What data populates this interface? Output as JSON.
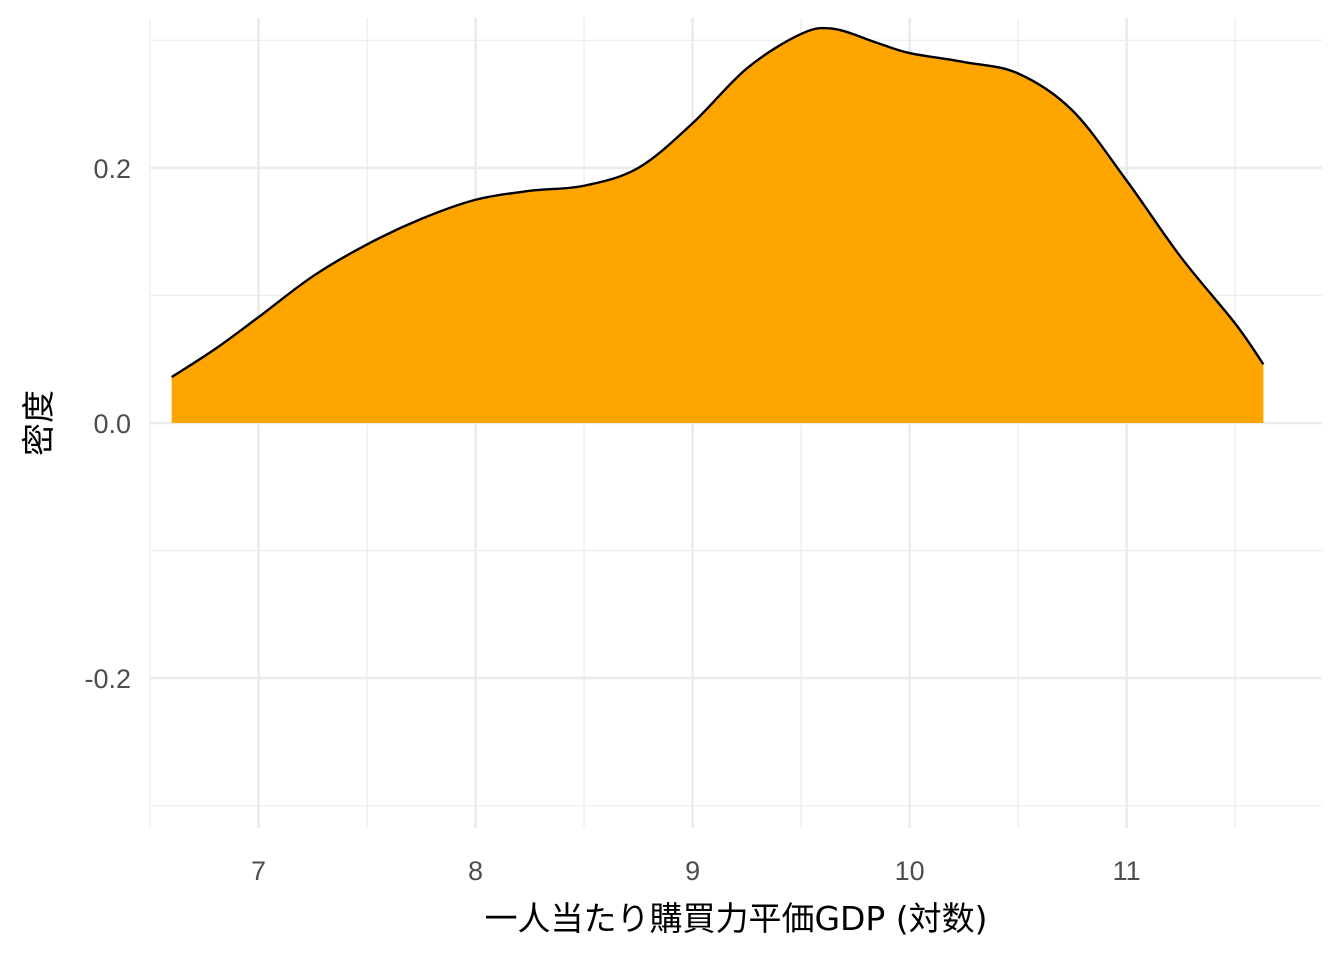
{
  "chart_data": {
    "type": "area",
    "title": "",
    "xlabel": "一人当たり購買力平価GDP (対数)",
    "ylabel": "密度",
    "xlim": [
      6.5,
      11.9
    ],
    "ylim": [
      -0.3175,
      0.3175
    ],
    "x_ticks": [
      7,
      8,
      9,
      10,
      11
    ],
    "x_tick_labels": [
      "7",
      "8",
      "9",
      "10",
      "11"
    ],
    "y_ticks": [
      -0.2,
      0.0,
      0.2
    ],
    "y_tick_labels": [
      "-0.2",
      "0.0",
      "0.2"
    ],
    "grid": true,
    "legend": "none",
    "fill_color": "#FFA500",
    "line_color": "#000000",
    "series": [
      {
        "x": [
          6.6,
          6.8,
          7.0,
          7.25,
          7.5,
          7.75,
          8.0,
          8.25,
          8.5,
          8.75,
          9.0,
          9.25,
          9.5,
          9.65,
          9.85,
          10.0,
          10.25,
          10.5,
          10.75,
          11.0,
          11.25,
          11.5,
          11.63
        ],
        "y": [
          0.036,
          0.058,
          0.083,
          0.115,
          0.14,
          0.16,
          0.175,
          0.182,
          0.186,
          0.2,
          0.235,
          0.278,
          0.305,
          0.309,
          0.298,
          0.29,
          0.283,
          0.274,
          0.245,
          0.19,
          0.13,
          0.078,
          0.046
        ]
      }
    ]
  }
}
